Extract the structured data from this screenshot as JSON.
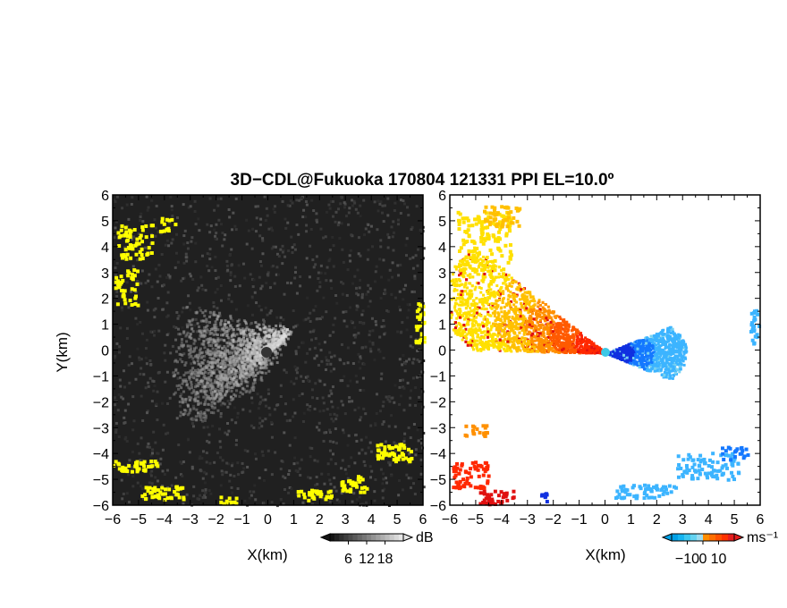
{
  "title": "3D−CDL@Fukuoka 170804 121331 PPI EL=10.0º",
  "colors": {
    "left_background": "#202020",
    "velocity_palette": [
      "#1030e0",
      "#1478ff",
      "#3cb4ff",
      "#78d2f0",
      "#ffe000",
      "#ffc000",
      "#ff9000",
      "#ff5a00",
      "#ff2800",
      "#e01010"
    ],
    "yellow_marker": "#ffff00"
  },
  "chart_data": [
    {
      "type": "heatmap",
      "name": "intensity",
      "xlabel": "X(km)",
      "ylabel": "Y(km)",
      "xlim": [
        -6,
        6
      ],
      "ylim": [
        -6,
        6
      ],
      "xticks": [
        "−6",
        "−5",
        "−4",
        "−3",
        "−2",
        "−1",
        "0",
        "1",
        "2",
        "3",
        "4",
        "5",
        "6"
      ],
      "yticks": [
        "6",
        "5",
        "4",
        "3",
        "2",
        "1",
        "0",
        "−1",
        "−2",
        "−3",
        "−4",
        "−5",
        "−6"
      ],
      "colorbar": {
        "unit": "dB",
        "ticks": [
          "6",
          "12",
          "18"
        ],
        "tick_values": [
          6,
          12,
          18
        ],
        "range": [
          0,
          24
        ]
      }
    },
    {
      "type": "heatmap",
      "name": "velocity",
      "xlabel": "X(km)",
      "xlim": [
        -6,
        6
      ],
      "ylim": [
        -6,
        6
      ],
      "xticks": [
        "−6",
        "−5",
        "−4",
        "−3",
        "−2",
        "−1",
        "0",
        "1",
        "2",
        "3",
        "4",
        "5",
        "6"
      ],
      "yticks": [
        "6",
        "5",
        "4",
        "3",
        "2",
        "1",
        "0",
        "−1",
        "−2",
        "−3",
        "−4",
        "−5",
        "−6"
      ],
      "colorbar": {
        "unit": "ms⁻¹",
        "ticks": [
          "−10",
          "0",
          "10"
        ],
        "tick_values": [
          -10,
          0,
          10
        ],
        "range": [
          -20,
          20
        ]
      }
    }
  ]
}
